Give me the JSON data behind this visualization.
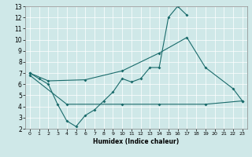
{
  "xlabel": "Humidex (Indice chaleur)",
  "xlim": [
    -0.5,
    23.5
  ],
  "ylim": [
    2,
    13
  ],
  "xticks": [
    0,
    1,
    2,
    3,
    4,
    5,
    6,
    7,
    8,
    9,
    10,
    11,
    12,
    13,
    14,
    15,
    16,
    17,
    18,
    19,
    20,
    21,
    22,
    23
  ],
  "yticks": [
    2,
    3,
    4,
    5,
    6,
    7,
    8,
    9,
    10,
    11,
    12,
    13
  ],
  "background_color": "#cfe8e8",
  "line_color": "#1a6b6b",
  "grid_color": "#ffffff",
  "line1_x": [
    0,
    1,
    2,
    3,
    4,
    5,
    6,
    7,
    8,
    9,
    10,
    11,
    12,
    13,
    14,
    15,
    16,
    17
  ],
  "line1_y": [
    7.0,
    6.5,
    6.0,
    4.2,
    2.7,
    2.2,
    3.2,
    3.7,
    4.5,
    5.3,
    6.5,
    6.2,
    6.5,
    7.5,
    7.5,
    12.0,
    13.0,
    12.2
  ],
  "line2_x": [
    0,
    2,
    6,
    10,
    14,
    17,
    19,
    22,
    23
  ],
  "line2_y": [
    7.0,
    6.3,
    6.4,
    7.2,
    8.8,
    10.2,
    7.5,
    5.6,
    4.5
  ],
  "line3_x": [
    0,
    4,
    10,
    14,
    19,
    23
  ],
  "line3_y": [
    6.8,
    4.2,
    4.2,
    4.2,
    4.2,
    4.5
  ]
}
